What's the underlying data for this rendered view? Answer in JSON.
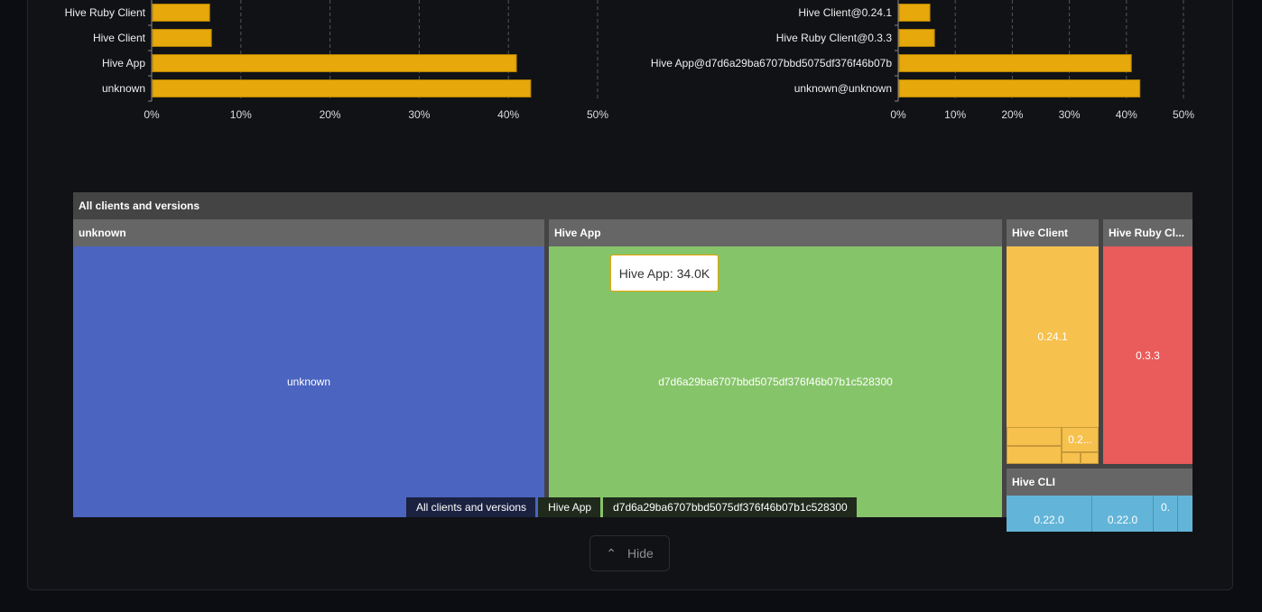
{
  "chart_data": [
    {
      "type": "bar",
      "orientation": "horizontal",
      "categories": [
        "Hive Ruby Client",
        "Hive Client",
        "Hive App",
        "unknown"
      ],
      "values": [
        6.4,
        6.6,
        40.8,
        42.4
      ],
      "xlim": [
        0,
        50
      ],
      "xticks": [
        "0%",
        "10%",
        "20%",
        "30%",
        "40%",
        "50%"
      ],
      "grid": true,
      "color": "#e6a80a"
    },
    {
      "type": "bar",
      "orientation": "horizontal",
      "categories": [
        "Hive Client@0.24.1",
        "Hive Ruby Client@0.3.3",
        "Hive App@d7d6a29ba6707bbd5075df376f46b07b",
        "unknown@unknown"
      ],
      "values": [
        5.4,
        6.2,
        40.7,
        42.2
      ],
      "xlim": [
        0,
        50
      ],
      "xticks": [
        "0%",
        "10%",
        "20%",
        "30%",
        "40%",
        "50%"
      ],
      "grid": true,
      "color": "#e6a80a"
    }
  ],
  "treemap": {
    "title": "All clients and versions",
    "groups": [
      {
        "name": "unknown",
        "color": "#4a64c0",
        "cells": [
          "unknown"
        ]
      },
      {
        "name": "Hive App",
        "color": "#86c46a",
        "cells": [
          "d7d6a29ba6707bbd5075df376f46b07b1c528300"
        ]
      },
      {
        "name": "Hive Client",
        "color": "#f7c14e",
        "cells": [
          "0.24.1",
          "0.2..."
        ]
      },
      {
        "name": "Hive Ruby Cl...",
        "color": "#ea5b5b",
        "cells": [
          "0.3.3"
        ]
      },
      {
        "name": "Hive CLI",
        "color": "#62b5d8",
        "cells": [
          "0.22.0",
          "0.22.0",
          "0."
        ]
      }
    ],
    "tooltip": "Hive App: 34.0K",
    "breadcrumb": [
      "All clients and versions",
      "Hive App",
      "d7d6a29ba6707bbd5075df376f46b07b1c528300"
    ]
  },
  "hide_label": "Hide"
}
